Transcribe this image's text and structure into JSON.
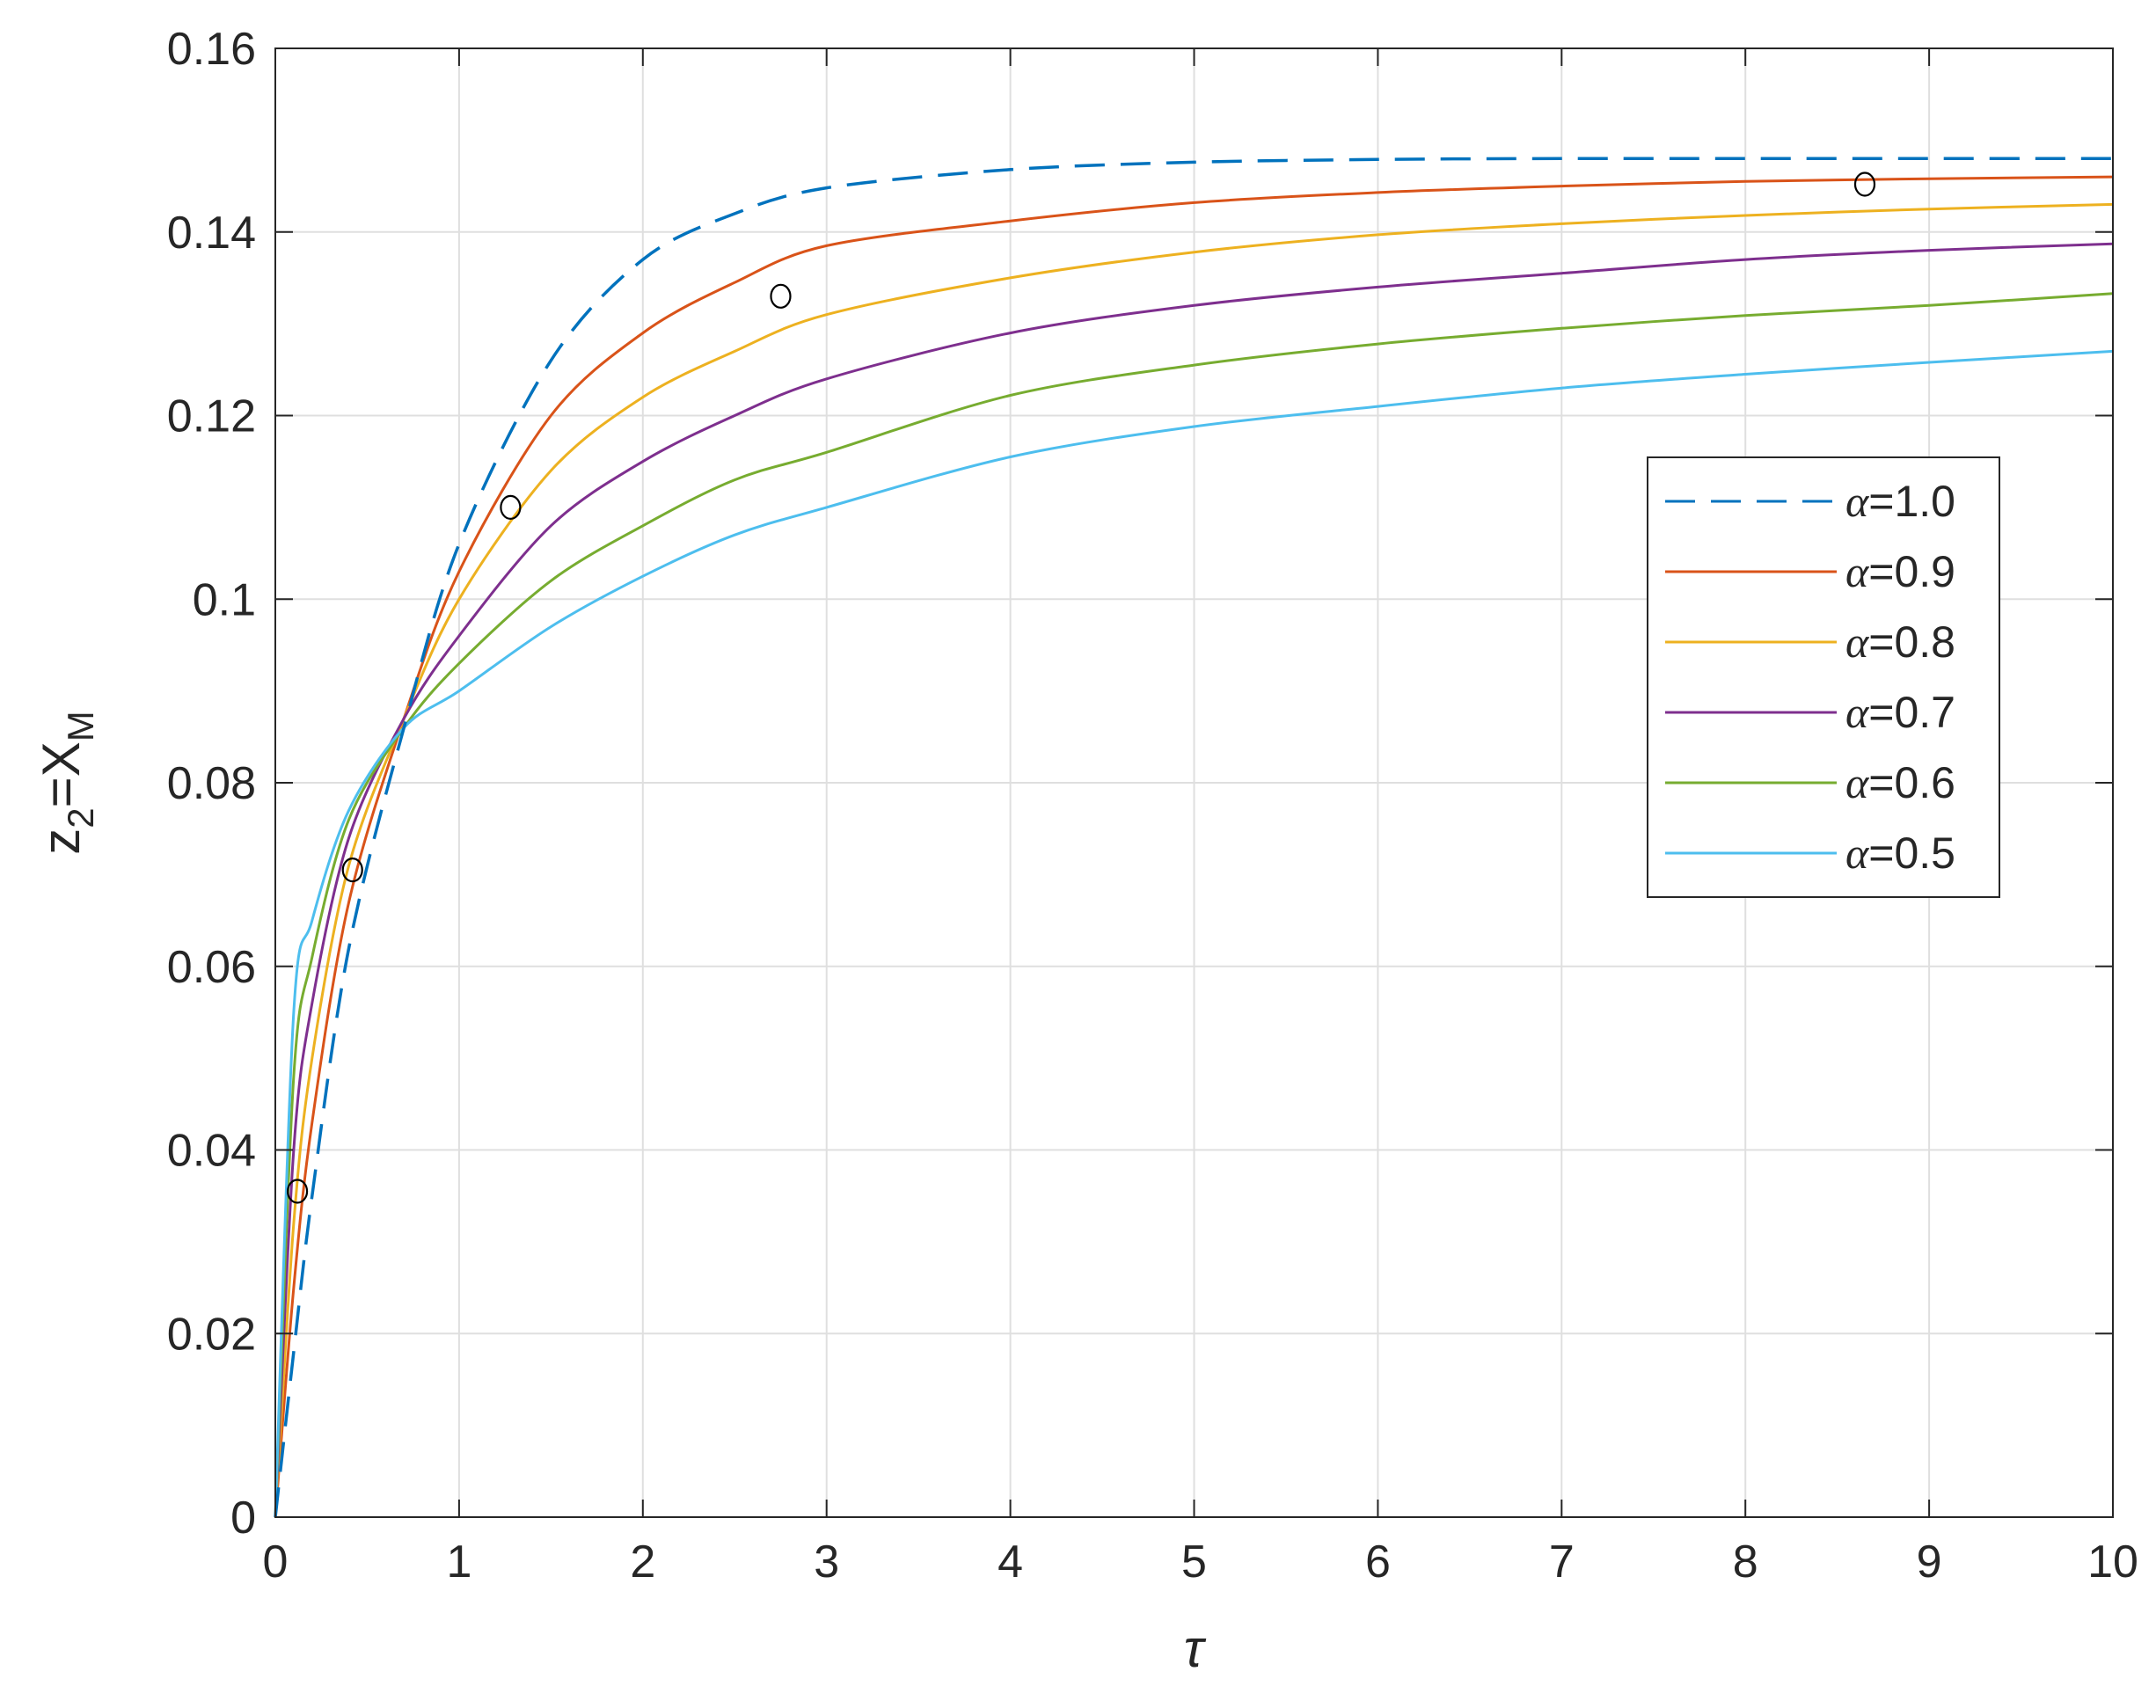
{
  "chart_data": {
    "type": "line",
    "title": "",
    "xlabel": "τ",
    "ylabel": {
      "base": "z",
      "base_sub": "2",
      "eq": "=X",
      "eq_sub": "M"
    },
    "xlim": [
      0,
      10
    ],
    "ylim": [
      0,
      0.16
    ],
    "xticks": [
      "0",
      "1",
      "2",
      "3",
      "4",
      "5",
      "6",
      "7",
      "8",
      "9",
      "10"
    ],
    "yticks": [
      "0",
      "0.02",
      "0.04",
      "0.06",
      "0.08",
      "0.1",
      "0.12",
      "0.14",
      "0.16"
    ],
    "grid": true,
    "legend_position": "right",
    "x": [
      0,
      0.1,
      0.2,
      0.4,
      0.7,
      1,
      1.5,
      2,
      2.5,
      3,
      4,
      5,
      6,
      7,
      8,
      9,
      10
    ],
    "series": [
      {
        "name": "α=1.0",
        "color": "#0072BD",
        "style": "dashed",
        "values": [
          0,
          0.018,
          0.035,
          0.062,
          0.086,
          0.106,
          0.126,
          0.137,
          0.142,
          0.1448,
          0.1468,
          0.1476,
          0.1479,
          0.148,
          0.148,
          0.148,
          0.148
        ]
      },
      {
        "name": "α=0.9",
        "color": "#D95319",
        "style": "solid",
        "values": [
          0,
          0.025,
          0.043,
          0.067,
          0.087,
          0.103,
          0.12,
          0.129,
          0.1345,
          0.1385,
          0.1412,
          0.1432,
          0.1443,
          0.145,
          0.1455,
          0.1458,
          0.146
        ]
      },
      {
        "name": "α=0.8",
        "color": "#EDB120",
        "style": "solid",
        "values": [
          0,
          0.032,
          0.05,
          0.071,
          0.087,
          0.1,
          0.114,
          0.122,
          0.127,
          0.131,
          0.135,
          0.1378,
          0.1397,
          0.1409,
          0.1418,
          0.1425,
          0.143
        ]
      },
      {
        "name": "α=0.7",
        "color": "#7E2F8E",
        "style": "solid",
        "values": [
          0,
          0.04,
          0.056,
          0.074,
          0.087,
          0.096,
          0.108,
          0.115,
          0.12,
          0.124,
          0.129,
          0.132,
          0.134,
          0.1355,
          0.137,
          0.138,
          0.1387
        ]
      },
      {
        "name": "α=0.6",
        "color": "#77AC30",
        "style": "solid",
        "values": [
          0,
          0.048,
          0.061,
          0.076,
          0.086,
          0.093,
          0.102,
          0.108,
          0.113,
          0.116,
          0.1222,
          0.1255,
          0.1278,
          0.1295,
          0.1309,
          0.132,
          0.1333
        ]
      },
      {
        "name": "α=0.5",
        "color": "#4DBEEE",
        "style": "solid",
        "values": [
          0,
          0.055,
          0.065,
          0.077,
          0.086,
          0.09,
          0.097,
          0.1025,
          0.107,
          0.11,
          0.1155,
          0.1188,
          0.121,
          0.123,
          0.1245,
          0.1258,
          0.127
        ]
      }
    ],
    "markers": {
      "style": "open-circle",
      "points": [
        {
          "x": 0.12,
          "y": 0.0355
        },
        {
          "x": 0.42,
          "y": 0.0705
        },
        {
          "x": 1.28,
          "y": 0.11
        },
        {
          "x": 2.75,
          "y": 0.133
        },
        {
          "x": 8.65,
          "y": 0.1452
        }
      ]
    }
  }
}
